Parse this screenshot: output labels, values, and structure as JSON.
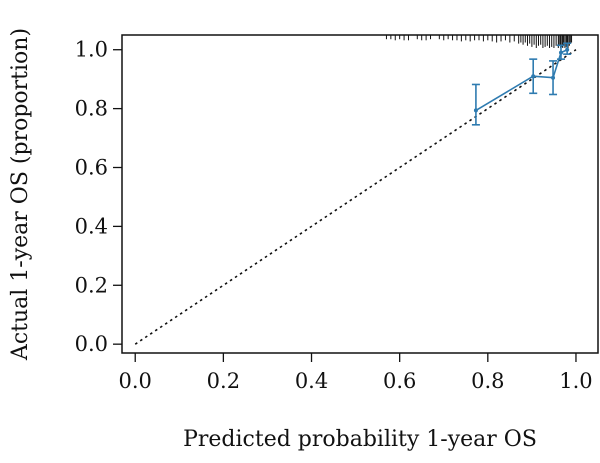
{
  "chart_data": {
    "type": "line",
    "title": "",
    "xlabel": "Predicted probability 1-year OS",
    "ylabel": "Actual 1-year OS (proportion)",
    "xlim": [
      -0.03,
      1.05
    ],
    "ylim": [
      -0.03,
      1.05
    ],
    "x_ticks": [
      0.0,
      0.2,
      0.4,
      0.6,
      0.8,
      1.0
    ],
    "x_tick_labels": [
      "0.0",
      "0.2",
      "0.4",
      "0.6",
      "0.8",
      "1.0"
    ],
    "y_ticks": [
      0.0,
      0.2,
      0.4,
      0.6,
      0.8,
      1.0
    ],
    "y_tick_labels": [
      "0.0",
      "0.2",
      "0.4",
      "0.6",
      "0.8",
      "1.0"
    ],
    "grid": false,
    "legend": "none",
    "reference_line": {
      "style": "dotted",
      "from": [
        0,
        0
      ],
      "to": [
        1,
        1
      ],
      "color": "#111111"
    },
    "calibration": {
      "color": "#2e7bb0",
      "x": [
        0.773,
        0.903,
        0.948,
        0.966,
        0.98
      ],
      "y": [
        0.794,
        0.91,
        0.905,
        0.99,
        1.0
      ],
      "lower": [
        0.745,
        0.852,
        0.848,
        0.968,
        0.985
      ],
      "upper": [
        0.882,
        0.968,
        0.962,
        1.015,
        1.022
      ]
    },
    "rug": {
      "color": "#111111",
      "x": [
        0.57,
        0.58,
        0.59,
        0.6,
        0.61,
        0.62,
        0.64,
        0.65,
        0.66,
        0.67,
        0.69,
        0.7,
        0.71,
        0.72,
        0.73,
        0.74,
        0.75,
        0.76,
        0.77,
        0.78,
        0.79,
        0.8,
        0.81,
        0.82,
        0.83,
        0.84,
        0.85,
        0.86,
        0.87,
        0.875,
        0.88,
        0.885,
        0.89,
        0.895,
        0.9,
        0.905,
        0.91,
        0.915,
        0.92,
        0.925,
        0.93,
        0.935,
        0.94,
        0.945,
        0.95,
        0.955,
        0.96,
        0.962,
        0.965,
        0.968,
        0.97,
        0.972,
        0.975,
        0.978,
        0.98,
        0.982,
        0.985,
        0.988,
        0.99
      ],
      "h": [
        0.2,
        0.2,
        0.3,
        0.2,
        0.3,
        0.3,
        0.2,
        0.3,
        0.3,
        0.2,
        0.2,
        0.3,
        0.2,
        0.3,
        0.3,
        0.4,
        0.3,
        0.4,
        0.3,
        0.3,
        0.4,
        0.3,
        0.4,
        0.5,
        0.4,
        0.3,
        0.5,
        0.4,
        0.6,
        0.5,
        0.7,
        0.5,
        0.8,
        0.6,
        0.9,
        0.7,
        1.0,
        0.8,
        0.7,
        1.0,
        0.9,
        0.8,
        1.0,
        0.9,
        1.0,
        0.8,
        1.0,
        0.7,
        1.0,
        0.9,
        1.0,
        0.8,
        1.0,
        0.9,
        0.7,
        1.0,
        0.8,
        0.6,
        0.5
      ]
    }
  }
}
